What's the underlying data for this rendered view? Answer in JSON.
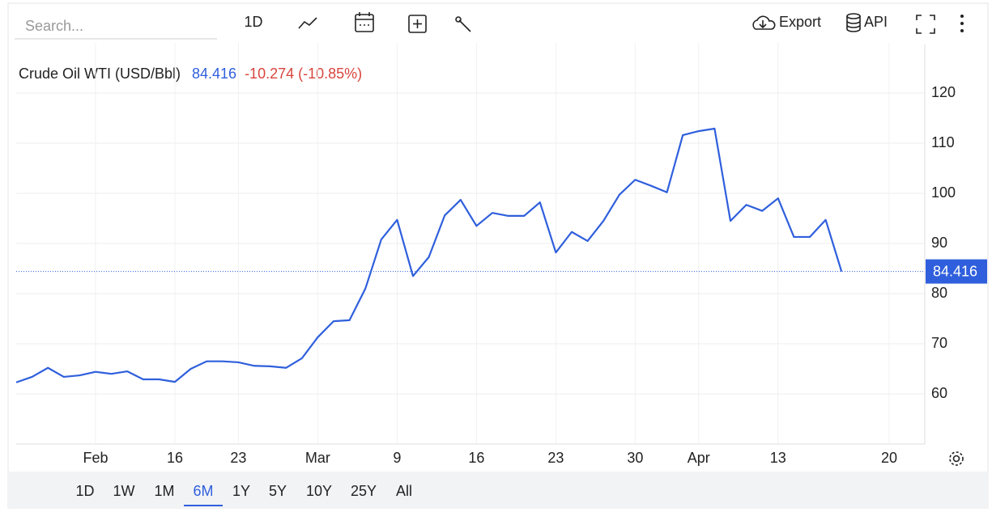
{
  "toolbar": {
    "search_placeholder": "Search...",
    "interval": "1D",
    "export": "Export",
    "api": "API"
  },
  "ranges": {
    "items": [
      "1D",
      "1W",
      "1M",
      "6M",
      "1Y",
      "5Y",
      "10Y",
      "25Y",
      "All"
    ],
    "active": "6M"
  },
  "chart_data": {
    "type": "line",
    "title": "Crude Oil WTI (USD/Bbl)",
    "change": "-10.274 (-10.85%)",
    "categories": [
      null,
      null,
      null,
      null,
      null,
      "Feb",
      null,
      null,
      null,
      null,
      "16",
      null,
      null,
      null,
      "23",
      null,
      null,
      null,
      null,
      "Mar",
      null,
      null,
      null,
      null,
      "9",
      null,
      null,
      null,
      null,
      "16",
      null,
      null,
      null,
      null,
      "23",
      null,
      null,
      null,
      null,
      "30",
      null,
      null,
      null,
      "Apr",
      null,
      null,
      null,
      null,
      "13",
      null,
      null,
      null,
      null,
      null,
      null,
      "20",
      null
    ],
    "series": [
      {
        "name": "Crude Oil WTI",
        "color": "#2f5fdc",
        "values": [
          62.3,
          63.4,
          65.2,
          63.4,
          63.7,
          64.4,
          64.0,
          64.5,
          62.9,
          62.9,
          62.4,
          65.0,
          66.5,
          66.5,
          66.3,
          65.6,
          65.5,
          65.2,
          67.1,
          71.3,
          74.5,
          74.7,
          81.0,
          90.8,
          94.7,
          83.5,
          87.3,
          95.6,
          98.7,
          93.5,
          96.1,
          95.5,
          95.5,
          98.2,
          88.2,
          92.3,
          90.5,
          94.5,
          99.7,
          102.7,
          101.5,
          100.2,
          111.6,
          112.4,
          112.9,
          94.5,
          97.7,
          96.5,
          99.0,
          91.3,
          91.3,
          94.7,
          84.416,
          null,
          null,
          null,
          null
        ]
      }
    ],
    "ylim": [
      50,
      130
    ],
    "yticks": [
      60,
      70,
      80,
      90,
      100,
      110,
      120
    ],
    "grid": true
  }
}
